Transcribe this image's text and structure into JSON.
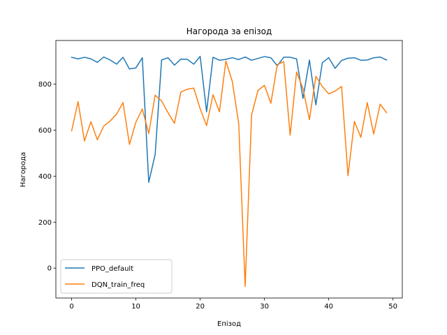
{
  "chart_data": {
    "type": "line",
    "title": "Нагорода за епізод",
    "xlabel": "Епізод",
    "ylabel": "Нагорода",
    "xlim": [
      -2.45,
      51.45
    ],
    "ylim": [
      -130,
      990
    ],
    "xticks": [
      0,
      10,
      20,
      30,
      40,
      50
    ],
    "yticks": [
      0,
      200,
      400,
      600,
      800
    ],
    "grid": false,
    "legend_position": "lower-left",
    "x": [
      0,
      1,
      2,
      3,
      4,
      5,
      6,
      7,
      8,
      9,
      10,
      11,
      12,
      13,
      14,
      15,
      16,
      17,
      18,
      19,
      20,
      21,
      22,
      23,
      24,
      25,
      26,
      27,
      28,
      29,
      30,
      31,
      32,
      33,
      34,
      35,
      36,
      37,
      38,
      39,
      40,
      41,
      42,
      43,
      44,
      45,
      46,
      47,
      48,
      49
    ],
    "series": [
      {
        "name": "PPO_default",
        "color": "#1f77b4",
        "values": [
          917,
          910,
          917,
          910,
          895,
          918,
          905,
          887,
          917,
          866,
          871,
          915,
          373,
          495,
          905,
          915,
          883,
          909,
          908,
          887,
          921,
          680,
          917,
          904,
          908,
          915,
          907,
          918,
          904,
          912,
          920,
          915,
          880,
          917,
          917,
          910,
          738,
          905,
          710,
          893,
          915,
          869,
          903,
          913,
          915,
          904,
          905,
          915,
          918,
          905
        ]
      },
      {
        "name": "DQN_train_freq",
        "color": "#ff7f0e",
        "values": [
          597,
          724,
          553,
          637,
          558,
          618,
          640,
          670,
          720,
          538,
          635,
          692,
          585,
          752,
          727,
          676,
          630,
          766,
          778,
          783,
          693,
          620,
          754,
          680,
          901,
          812,
          628,
          -80,
          666,
          773,
          795,
          717,
          885,
          898,
          578,
          853,
          780,
          646,
          834,
          790,
          758,
          770,
          790,
          402,
          638,
          569,
          720,
          583,
          713,
          676
        ]
      }
    ]
  }
}
